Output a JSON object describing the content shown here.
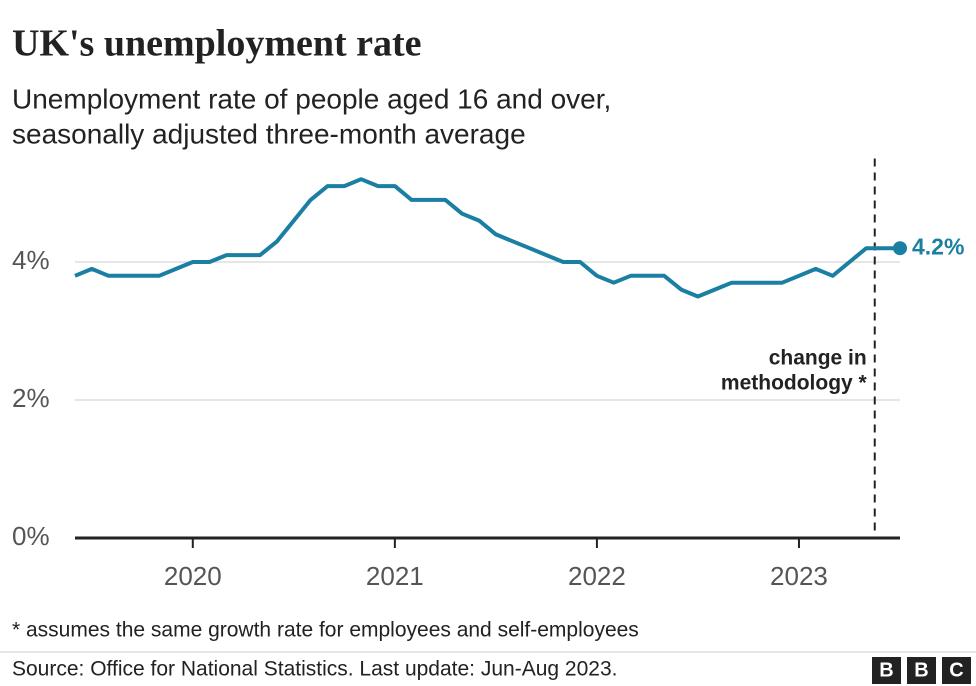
{
  "chart_data": {
    "type": "line",
    "title": "UK's unemployment rate",
    "subtitle_lines": [
      "Unemployment rate of people aged 16 and over,",
      "seasonally adjusted three-month average"
    ],
    "x": [
      2019.417,
      2019.5,
      2019.583,
      2019.667,
      2019.75,
      2019.833,
      2019.917,
      2020,
      2020.083,
      2020.167,
      2020.25,
      2020.333,
      2020.417,
      2020.5,
      2020.583,
      2020.667,
      2020.75,
      2020.833,
      2020.917,
      2021,
      2021.083,
      2021.167,
      2021.25,
      2021.333,
      2021.417,
      2021.5,
      2021.583,
      2021.667,
      2021.75,
      2021.833,
      2021.917,
      2022,
      2022.083,
      2022.167,
      2022.25,
      2022.333,
      2022.417,
      2022.5,
      2022.583,
      2022.667,
      2022.75,
      2022.833,
      2022.917,
      2023,
      2023.083,
      2023.167,
      2023.25,
      2023.333,
      2023.417,
      2023.5
    ],
    "values": [
      3.8,
      3.9,
      3.8,
      3.8,
      3.8,
      3.8,
      3.9,
      4.0,
      4.0,
      4.1,
      4.1,
      4.1,
      4.3,
      4.6,
      4.9,
      5.1,
      5.1,
      5.2,
      5.1,
      5.1,
      4.9,
      4.9,
      4.9,
      4.7,
      4.6,
      4.4,
      4.3,
      4.2,
      4.1,
      4.0,
      4.0,
      3.8,
      3.7,
      3.8,
      3.8,
      3.8,
      3.6,
      3.5,
      3.6,
      3.7,
      3.7,
      3.7,
      3.7,
      3.8,
      3.9,
      3.8,
      4.0,
      4.2,
      4.2,
      4.2
    ],
    "value_labels": [
      null,
      null,
      null,
      null,
      null,
      null,
      null,
      null,
      null,
      null,
      null,
      null,
      null,
      null,
      null,
      null,
      null,
      null,
      null,
      null,
      null,
      null,
      null,
      null,
      null,
      null,
      null,
      null,
      null,
      null,
      null,
      null,
      null,
      null,
      null,
      null,
      null,
      null,
      null,
      null,
      null,
      null,
      null,
      null,
      null,
      null,
      null,
      null,
      null,
      "4.2%"
    ],
    "color": "#1a7fa3",
    "xlim": [
      2019.417,
      2023.5
    ],
    "xticks": [
      2020,
      2021,
      2022,
      2023
    ],
    "ylim": [
      0,
      5.5
    ],
    "yticks": [
      {
        "value": 0,
        "label": "0%"
      },
      {
        "value": 2,
        "label": "2%"
      },
      {
        "value": 4,
        "label": "4%"
      }
    ],
    "grid": true,
    "annotation": {
      "x": 2023.375,
      "lines": [
        "change in",
        "methodology *"
      ]
    },
    "footnote": "* assumes the same growth rate for employees and self-employees",
    "source": "Source: Office for National Statistics. Last update: Jun-Aug 2023.",
    "logo": [
      "B",
      "B",
      "C"
    ]
  }
}
